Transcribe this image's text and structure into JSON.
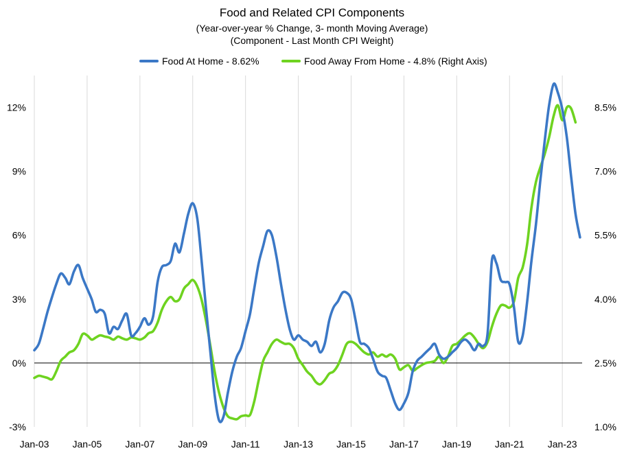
{
  "chart_data": {
    "type": "line",
    "title": "Food  and Related CPI Components",
    "subtitle_lines": [
      "(Year-over-year % Change, 3- month Moving Average)",
      "(Component - Last Month CPI Weight)"
    ],
    "legend_placement": "top-center",
    "grid": {
      "vertical": true,
      "horizontal": false,
      "zero_line": true
    },
    "colors": {
      "food_at_home": "#3b78c6",
      "food_away": "#6ed320",
      "grid": "#d9d9d9",
      "zero_line": "#000000"
    },
    "x_axis": {
      "min": 2003.0,
      "max": 2023.75,
      "ticks": [
        2003,
        2005,
        2007,
        2009,
        2011,
        2013,
        2015,
        2017,
        2019,
        2021,
        2023
      ],
      "tick_labels": [
        "Jan-03",
        "Jan-05",
        "Jan-07",
        "Jan-09",
        "Jan-11",
        "Jan-13",
        "Jan-15",
        "Jan-17",
        "Jan-19",
        "Jan-21",
        "Jan-23"
      ]
    },
    "y_left": {
      "min": -3,
      "max": 13.5,
      "ticks": [
        -3,
        0,
        3,
        6,
        9,
        12
      ],
      "tick_labels": [
        "-3%",
        "0%",
        "3%",
        "6%",
        "9%",
        "12%"
      ]
    },
    "y_right": {
      "min": 1.0,
      "max": 9.25,
      "ticks": [
        1.0,
        2.5,
        4.0,
        5.5,
        7.0,
        8.5
      ],
      "tick_labels": [
        "1.0%",
        "2.5%",
        "4.0%",
        "5.5%",
        "7.0%",
        "8.5%"
      ]
    },
    "series": [
      {
        "name": "Food At Home - 8.62%",
        "axis": "left",
        "points": [
          [
            2003.0,
            0.6
          ],
          [
            2003.17,
            0.9
          ],
          [
            2003.33,
            1.6
          ],
          [
            2003.5,
            2.4
          ],
          [
            2003.67,
            3.1
          ],
          [
            2003.83,
            3.7
          ],
          [
            2004.0,
            4.2
          ],
          [
            2004.17,
            4.0
          ],
          [
            2004.33,
            3.7
          ],
          [
            2004.5,
            4.3
          ],
          [
            2004.67,
            4.6
          ],
          [
            2004.83,
            4.0
          ],
          [
            2005.0,
            3.5
          ],
          [
            2005.17,
            3.0
          ],
          [
            2005.33,
            2.4
          ],
          [
            2005.5,
            2.5
          ],
          [
            2005.67,
            2.3
          ],
          [
            2005.83,
            1.4
          ],
          [
            2006.0,
            1.7
          ],
          [
            2006.17,
            1.6
          ],
          [
            2006.33,
            2.0
          ],
          [
            2006.5,
            2.3
          ],
          [
            2006.67,
            1.3
          ],
          [
            2006.83,
            1.4
          ],
          [
            2007.0,
            1.7
          ],
          [
            2007.17,
            2.1
          ],
          [
            2007.33,
            1.8
          ],
          [
            2007.5,
            2.2
          ],
          [
            2007.67,
            3.8
          ],
          [
            2007.83,
            4.5
          ],
          [
            2008.0,
            4.6
          ],
          [
            2008.17,
            4.8
          ],
          [
            2008.33,
            5.6
          ],
          [
            2008.5,
            5.2
          ],
          [
            2008.67,
            6.1
          ],
          [
            2008.83,
            7.0
          ],
          [
            2009.0,
            7.5
          ],
          [
            2009.17,
            6.8
          ],
          [
            2009.33,
            4.9
          ],
          [
            2009.5,
            2.6
          ],
          [
            2009.67,
            0.5
          ],
          [
            2009.83,
            -1.5
          ],
          [
            2010.0,
            -2.7
          ],
          [
            2010.17,
            -2.5
          ],
          [
            2010.33,
            -1.4
          ],
          [
            2010.5,
            -0.4
          ],
          [
            2010.67,
            0.3
          ],
          [
            2010.83,
            0.7
          ],
          [
            2011.0,
            1.5
          ],
          [
            2011.17,
            2.3
          ],
          [
            2011.33,
            3.5
          ],
          [
            2011.5,
            4.7
          ],
          [
            2011.67,
            5.5
          ],
          [
            2011.83,
            6.2
          ],
          [
            2012.0,
            6.0
          ],
          [
            2012.17,
            5.0
          ],
          [
            2012.33,
            3.8
          ],
          [
            2012.5,
            2.6
          ],
          [
            2012.67,
            1.6
          ],
          [
            2012.83,
            1.1
          ],
          [
            2013.0,
            1.3
          ],
          [
            2013.17,
            1.1
          ],
          [
            2013.33,
            1.0
          ],
          [
            2013.5,
            0.8
          ],
          [
            2013.67,
            1.0
          ],
          [
            2013.83,
            0.5
          ],
          [
            2014.0,
            0.9
          ],
          [
            2014.17,
            2.0
          ],
          [
            2014.33,
            2.6
          ],
          [
            2014.5,
            2.9
          ],
          [
            2014.67,
            3.3
          ],
          [
            2014.83,
            3.3
          ],
          [
            2015.0,
            3.0
          ],
          [
            2015.17,
            2.0
          ],
          [
            2015.33,
            1.0
          ],
          [
            2015.5,
            0.9
          ],
          [
            2015.67,
            0.7
          ],
          [
            2015.83,
            0.2
          ],
          [
            2016.0,
            -0.4
          ],
          [
            2016.17,
            -0.6
          ],
          [
            2016.33,
            -0.7
          ],
          [
            2016.5,
            -1.3
          ],
          [
            2016.67,
            -1.9
          ],
          [
            2016.83,
            -2.2
          ],
          [
            2017.0,
            -1.9
          ],
          [
            2017.17,
            -1.4
          ],
          [
            2017.33,
            -0.4
          ],
          [
            2017.5,
            0.1
          ],
          [
            2017.67,
            0.3
          ],
          [
            2017.83,
            0.5
          ],
          [
            2018.0,
            0.7
          ],
          [
            2018.17,
            0.9
          ],
          [
            2018.33,
            0.4
          ],
          [
            2018.5,
            0.2
          ],
          [
            2018.67,
            0.3
          ],
          [
            2018.83,
            0.5
          ],
          [
            2019.0,
            0.7
          ],
          [
            2019.17,
            1.0
          ],
          [
            2019.33,
            1.1
          ],
          [
            2019.5,
            0.9
          ],
          [
            2019.67,
            0.6
          ],
          [
            2019.83,
            0.9
          ],
          [
            2020.0,
            0.8
          ],
          [
            2020.17,
            1.4
          ],
          [
            2020.33,
            4.8
          ],
          [
            2020.5,
            4.7
          ],
          [
            2020.67,
            3.9
          ],
          [
            2020.83,
            3.8
          ],
          [
            2021.0,
            3.7
          ],
          [
            2021.17,
            2.6
          ],
          [
            2021.33,
            1.0
          ],
          [
            2021.5,
            1.3
          ],
          [
            2021.67,
            2.9
          ],
          [
            2021.83,
            4.8
          ],
          [
            2022.0,
            6.5
          ],
          [
            2022.17,
            8.6
          ],
          [
            2022.33,
            10.4
          ],
          [
            2022.5,
            12.1
          ],
          [
            2022.67,
            13.1
          ],
          [
            2022.83,
            12.7
          ],
          [
            2023.0,
            11.9
          ],
          [
            2023.17,
            10.6
          ],
          [
            2023.33,
            8.8
          ],
          [
            2023.5,
            7.0
          ],
          [
            2023.67,
            5.9
          ]
        ]
      },
      {
        "name": "Food Away From Home - 4.8% (Right Axis)",
        "axis": "right",
        "points": [
          [
            2003.0,
            2.15
          ],
          [
            2003.17,
            2.2
          ],
          [
            2003.33,
            2.18
          ],
          [
            2003.5,
            2.15
          ],
          [
            2003.67,
            2.12
          ],
          [
            2003.83,
            2.3
          ],
          [
            2004.0,
            2.55
          ],
          [
            2004.17,
            2.65
          ],
          [
            2004.33,
            2.75
          ],
          [
            2004.5,
            2.8
          ],
          [
            2004.67,
            2.95
          ],
          [
            2004.83,
            3.18
          ],
          [
            2005.0,
            3.15
          ],
          [
            2005.17,
            3.05
          ],
          [
            2005.33,
            3.1
          ],
          [
            2005.5,
            3.15
          ],
          [
            2005.67,
            3.12
          ],
          [
            2005.83,
            3.1
          ],
          [
            2006.0,
            3.05
          ],
          [
            2006.17,
            3.12
          ],
          [
            2006.33,
            3.08
          ],
          [
            2006.5,
            3.05
          ],
          [
            2006.67,
            3.1
          ],
          [
            2006.83,
            3.08
          ],
          [
            2007.0,
            3.05
          ],
          [
            2007.17,
            3.1
          ],
          [
            2007.33,
            3.2
          ],
          [
            2007.5,
            3.25
          ],
          [
            2007.67,
            3.45
          ],
          [
            2007.83,
            3.75
          ],
          [
            2008.0,
            3.95
          ],
          [
            2008.17,
            4.05
          ],
          [
            2008.33,
            3.95
          ],
          [
            2008.5,
            4.0
          ],
          [
            2008.67,
            4.25
          ],
          [
            2008.83,
            4.35
          ],
          [
            2009.0,
            4.45
          ],
          [
            2009.17,
            4.3
          ],
          [
            2009.33,
            4.0
          ],
          [
            2009.5,
            3.5
          ],
          [
            2009.67,
            2.9
          ],
          [
            2009.83,
            2.3
          ],
          [
            2010.0,
            1.8
          ],
          [
            2010.17,
            1.45
          ],
          [
            2010.33,
            1.25
          ],
          [
            2010.5,
            1.2
          ],
          [
            2010.67,
            1.18
          ],
          [
            2010.83,
            1.25
          ],
          [
            2011.0,
            1.27
          ],
          [
            2011.17,
            1.28
          ],
          [
            2011.33,
            1.6
          ],
          [
            2011.5,
            2.1
          ],
          [
            2011.67,
            2.55
          ],
          [
            2011.83,
            2.75
          ],
          [
            2012.0,
            2.95
          ],
          [
            2012.17,
            3.05
          ],
          [
            2012.33,
            3.0
          ],
          [
            2012.5,
            2.95
          ],
          [
            2012.67,
            2.95
          ],
          [
            2012.83,
            2.85
          ],
          [
            2013.0,
            2.6
          ],
          [
            2013.17,
            2.45
          ],
          [
            2013.33,
            2.3
          ],
          [
            2013.5,
            2.2
          ],
          [
            2013.67,
            2.05
          ],
          [
            2013.83,
            2.0
          ],
          [
            2014.0,
            2.1
          ],
          [
            2014.17,
            2.25
          ],
          [
            2014.33,
            2.3
          ],
          [
            2014.5,
            2.45
          ],
          [
            2014.67,
            2.7
          ],
          [
            2014.83,
            2.95
          ],
          [
            2015.0,
            3.0
          ],
          [
            2015.17,
            2.95
          ],
          [
            2015.33,
            2.85
          ],
          [
            2015.5,
            2.75
          ],
          [
            2015.67,
            2.7
          ],
          [
            2015.83,
            2.75
          ],
          [
            2016.0,
            2.65
          ],
          [
            2016.17,
            2.7
          ],
          [
            2016.33,
            2.65
          ],
          [
            2016.5,
            2.7
          ],
          [
            2016.67,
            2.6
          ],
          [
            2016.83,
            2.35
          ],
          [
            2017.0,
            2.4
          ],
          [
            2017.17,
            2.45
          ],
          [
            2017.33,
            2.32
          ],
          [
            2017.5,
            2.38
          ],
          [
            2017.67,
            2.45
          ],
          [
            2017.83,
            2.5
          ],
          [
            2018.0,
            2.52
          ],
          [
            2018.17,
            2.55
          ],
          [
            2018.33,
            2.65
          ],
          [
            2018.5,
            2.5
          ],
          [
            2018.67,
            2.65
          ],
          [
            2018.83,
            2.9
          ],
          [
            2019.0,
            2.95
          ],
          [
            2019.17,
            3.05
          ],
          [
            2019.33,
            3.15
          ],
          [
            2019.5,
            3.2
          ],
          [
            2019.67,
            3.1
          ],
          [
            2019.83,
            2.95
          ],
          [
            2020.0,
            2.85
          ],
          [
            2020.17,
            3.0
          ],
          [
            2020.33,
            3.35
          ],
          [
            2020.5,
            3.65
          ],
          [
            2020.67,
            3.85
          ],
          [
            2020.83,
            3.85
          ],
          [
            2021.0,
            3.8
          ],
          [
            2021.17,
            3.95
          ],
          [
            2021.33,
            4.5
          ],
          [
            2021.5,
            4.75
          ],
          [
            2021.67,
            5.3
          ],
          [
            2021.83,
            6.15
          ],
          [
            2022.0,
            6.75
          ],
          [
            2022.17,
            7.1
          ],
          [
            2022.33,
            7.4
          ],
          [
            2022.5,
            7.8
          ],
          [
            2022.67,
            8.3
          ],
          [
            2022.83,
            8.55
          ],
          [
            2023.0,
            8.2
          ],
          [
            2023.17,
            8.5
          ],
          [
            2023.33,
            8.48
          ],
          [
            2023.5,
            8.15
          ]
        ]
      }
    ]
  }
}
